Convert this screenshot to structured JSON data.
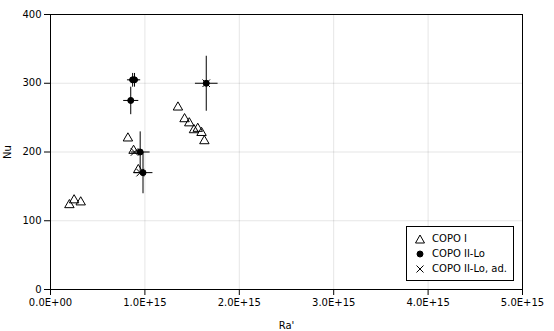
{
  "chart_data": {
    "type": "scatter",
    "xlabel": "Ra'",
    "ylabel": "Nu",
    "xlim": [
      0,
      5000000000000000.0
    ],
    "ylim": [
      0,
      400
    ],
    "xticks": [
      {
        "value": 0,
        "label": "0.0E+00"
      },
      {
        "value": 1000000000000000.0,
        "label": "1.0E+15"
      },
      {
        "value": 2000000000000000.0,
        "label": "2.0E+15"
      },
      {
        "value": 3000000000000000.0,
        "label": "3.0E+15"
      },
      {
        "value": 4000000000000000.0,
        "label": "4.0E+15"
      },
      {
        "value": 5000000000000000.0,
        "label": "5.0E+15"
      }
    ],
    "yticks": [
      0,
      100,
      200,
      300,
      400
    ],
    "grid": true,
    "legend": "lower right",
    "series": [
      {
        "name": "COPO I",
        "marker": "triangle",
        "color": "black",
        "x": [
          200000000000000.0,
          250000000000000.0,
          320000000000000.0,
          820000000000000.0,
          880000000000000.0,
          930000000000000.0,
          1350000000000000.0,
          1420000000000000.0,
          1470000000000000.0,
          1520000000000000.0,
          1560000000000000.0,
          1600000000000000.0,
          1630000000000000.0
        ],
        "values": [
          123,
          130,
          127,
          220,
          202,
          174,
          265,
          248,
          242,
          232,
          234,
          228,
          216
        ]
      },
      {
        "name": "COPO II-Lo",
        "marker": "circle",
        "color": "black",
        "x": [
          850000000000000.0,
          870000000000000.0,
          890000000000000.0,
          950000000000000.0,
          980000000000000.0,
          1650000000000000.0
        ],
        "values": [
          275,
          305,
          305,
          200,
          170,
          300
        ],
        "xerr_low": [
          80000000000000.0,
          60000000000000.0,
          60000000000000.0,
          100000000000000.0,
          100000000000000.0,
          120000000000000.0
        ],
        "xerr_high": [
          80000000000000.0,
          60000000000000.0,
          60000000000000.0,
          100000000000000.0,
          100000000000000.0,
          120000000000000.0
        ],
        "yerr_low": [
          20,
          10,
          10,
          30,
          30,
          40
        ],
        "yerr_high": [
          20,
          10,
          10,
          30,
          30,
          40
        ]
      },
      {
        "name": "COPO II-Lo, ad.",
        "marker": "x",
        "color": "black",
        "x": [
          890000000000000.0,
          950000000000000.0,
          1650000000000000.0
        ],
        "values": [
          200,
          170,
          300
        ]
      }
    ]
  }
}
